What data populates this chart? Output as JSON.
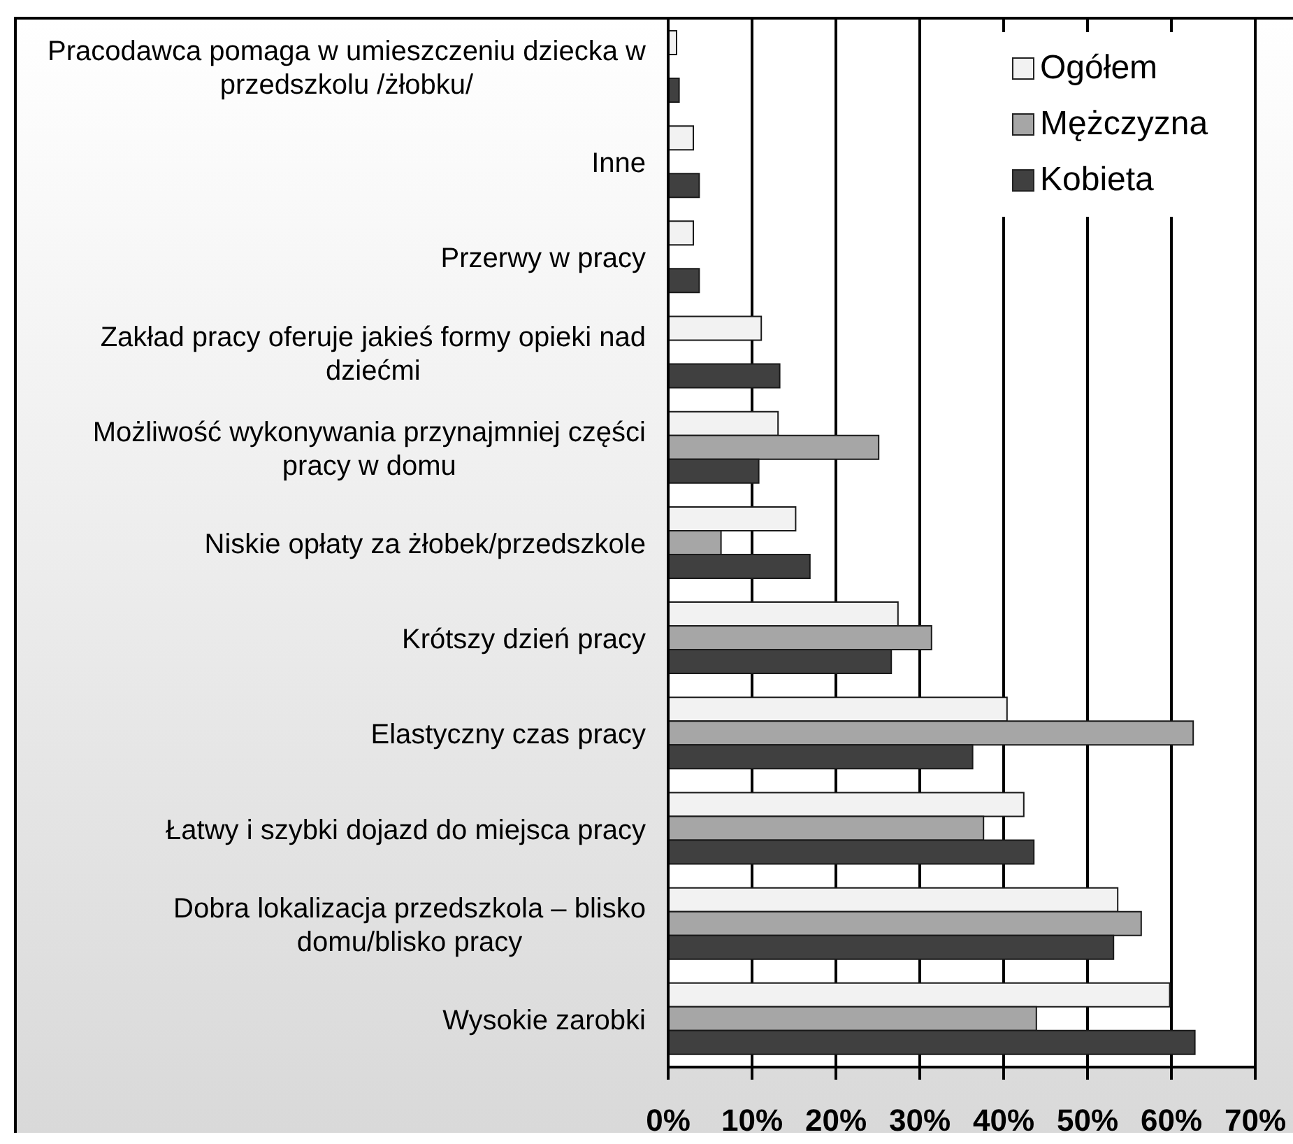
{
  "chart_data": {
    "type": "bar",
    "orientation": "horizontal",
    "categories": [
      "Pracodawca pomaga w umieszczeniu dziecka w przedszkolu /żłobku/",
      "Inne",
      "Przerwy w pracy",
      "Zakład pracy oferuje jakieś formy opieki nad dziećmi",
      "Możliwość wykonywania przynajmniej części pracy w domu",
      "Niskie opłaty za żłobek/przedszkole",
      "Krótszy dzień pracy",
      "Elastyczny czas pracy",
      "Łatwy i szybki dojazd do miejsca pracy",
      "Dobra lokalizacja przedszkola – blisko domu/blisko pracy",
      "Wysokie zarobki"
    ],
    "series": [
      {
        "name": "Ogółem",
        "color": "#f2f2f2",
        "values": [
          1.0,
          3.0,
          3.0,
          11.1,
          13.1,
          15.2,
          27.4,
          40.4,
          42.4,
          53.6,
          59.8
        ]
      },
      {
        "name": "Mężczyzna",
        "color": "#a6a6a6",
        "values": [
          null,
          null,
          null,
          null,
          25.1,
          6.3,
          31.4,
          62.6,
          37.6,
          56.4,
          43.9
        ]
      },
      {
        "name": "Kobieta",
        "color": "#404040",
        "values": [
          1.3,
          3.7,
          3.7,
          13.3,
          10.8,
          16.9,
          26.6,
          36.3,
          43.6,
          53.1,
          62.8
        ]
      }
    ],
    "xlim": [
      0,
      70
    ],
    "xticks": [
      {
        "value": 0,
        "label": "0%"
      },
      {
        "value": 10,
        "label": "10%"
      },
      {
        "value": 20,
        "label": "20%"
      },
      {
        "value": 30,
        "label": "30%"
      },
      {
        "value": 40,
        "label": "40%"
      },
      {
        "value": 50,
        "label": "50%"
      },
      {
        "value": 60,
        "label": "60%"
      },
      {
        "value": 70,
        "label": "70%"
      }
    ],
    "grid": "x",
    "legend": "top right"
  }
}
